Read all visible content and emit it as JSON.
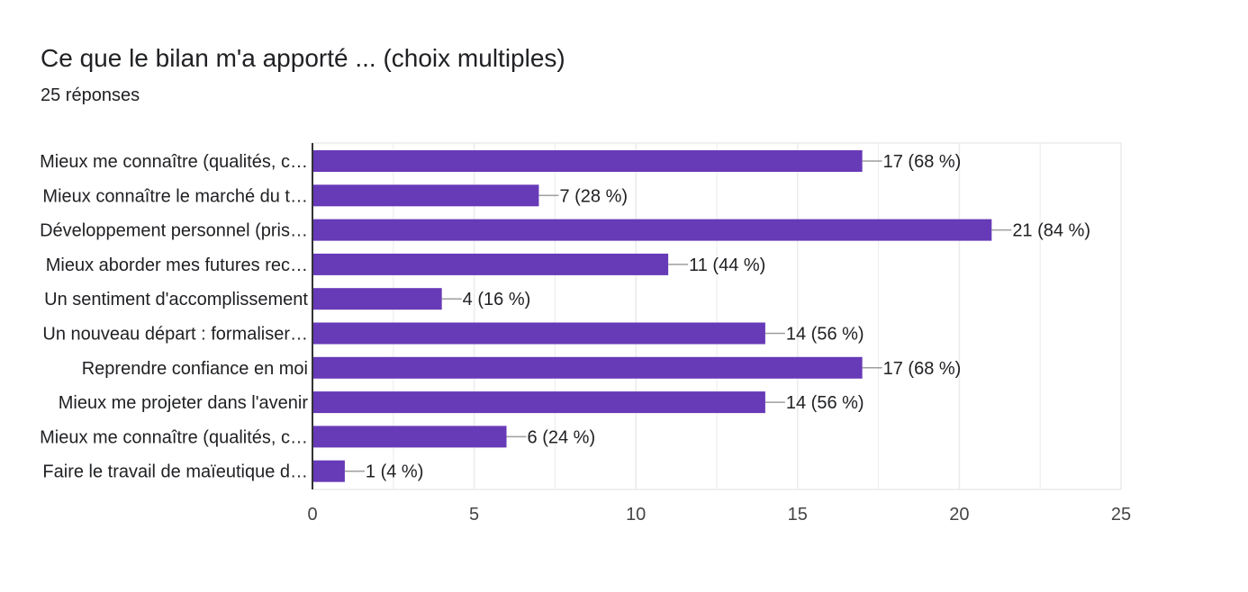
{
  "header": {
    "title": "Ce que le bilan m'a apporté ... (choix multiples)",
    "subtitle": "25 réponses"
  },
  "colors": {
    "bar": "#673ab7",
    "text": "#202124",
    "axis": "#333333",
    "grid": "#ebebeb",
    "leader": "#9e9e9e"
  },
  "chart_data": {
    "type": "bar",
    "orientation": "horizontal",
    "categories": [
      "Mieux me connaître (qualités, c…",
      "Mieux connaître le marché du t…",
      "Développement personnel (pris…",
      "Mieux aborder mes futures rec…",
      "Un sentiment d'accomplissement",
      "Un nouveau départ : formaliser…",
      "Reprendre confiance en moi",
      "Mieux me projeter dans l'avenir",
      "Mieux me connaître (qualités, c…",
      "Faire le travail de maïeutique d…"
    ],
    "values": [
      17,
      7,
      21,
      11,
      4,
      14,
      17,
      14,
      6,
      1
    ],
    "data_labels": [
      "17 (68 %)",
      "7 (28 %)",
      "21 (84 %)",
      "11 (44 %)",
      "4 (16 %)",
      "14 (56 %)",
      "17 (68 %)",
      "14 (56 %)",
      "6 (24 %)",
      "1 (4 %)"
    ],
    "xlim": [
      0,
      25
    ],
    "xticks": [
      0,
      5,
      10,
      15,
      20,
      25
    ],
    "grid": true,
    "legend": "none"
  }
}
